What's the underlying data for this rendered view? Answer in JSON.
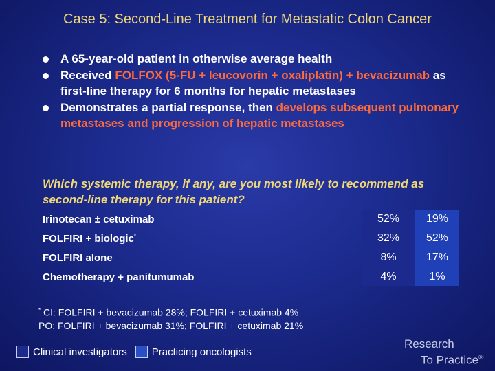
{
  "title": "Case 5: Second-Line Treatment for Metastatic Colon Cancer",
  "bullets": {
    "b1": "A 65-year-old patient in otherwise average health",
    "b2_pre": "Received ",
    "b2_hl": "FOLFOX (5-FU + leucovorin + oxaliplatin) + bevacizumab",
    "b2_post": " as first-line therapy for 6 months for hepatic metastases",
    "b3_pre": "Demonstrates a partial response, then ",
    "b3_hl": "develops subsequent pulmonary metastases and progression of hepatic metastases"
  },
  "question": "Which systemic therapy, if any, are you most likely to recommend as second-line therapy for this patient?",
  "table": {
    "rows": [
      {
        "label": "Irinotecan ± cetuximab",
        "sup": "",
        "ci": "52%",
        "po": "19%"
      },
      {
        "label": "FOLFIRI + biologic",
        "sup": "*",
        "ci": "32%",
        "po": "52%"
      },
      {
        "label": "FOLFIRI alone",
        "sup": "",
        "ci": "8%",
        "po": "17%"
      },
      {
        "label": "Chemotherapy + panitumumab",
        "sup": "",
        "ci": "4%",
        "po": "1%"
      }
    ]
  },
  "footnote": {
    "marker": "*",
    "line1": "CI: FOLFIRI + bevacizumab 28%; FOLFIRI + cetuximab 4%",
    "line2": "PO: FOLFIRI + bevacizumab 31%; FOLFIRI + cetuximab 21%"
  },
  "legend": {
    "ci": "Clinical investigators",
    "po": "Practicing oncologists"
  },
  "logo": {
    "line1": "Research",
    "line2": "To Practice",
    "mark": "®"
  },
  "colors": {
    "title": "#f0d878",
    "highlight": "#ff6a3a",
    "ci_column": "#1b2a8c",
    "po_column": "#2040b8"
  }
}
